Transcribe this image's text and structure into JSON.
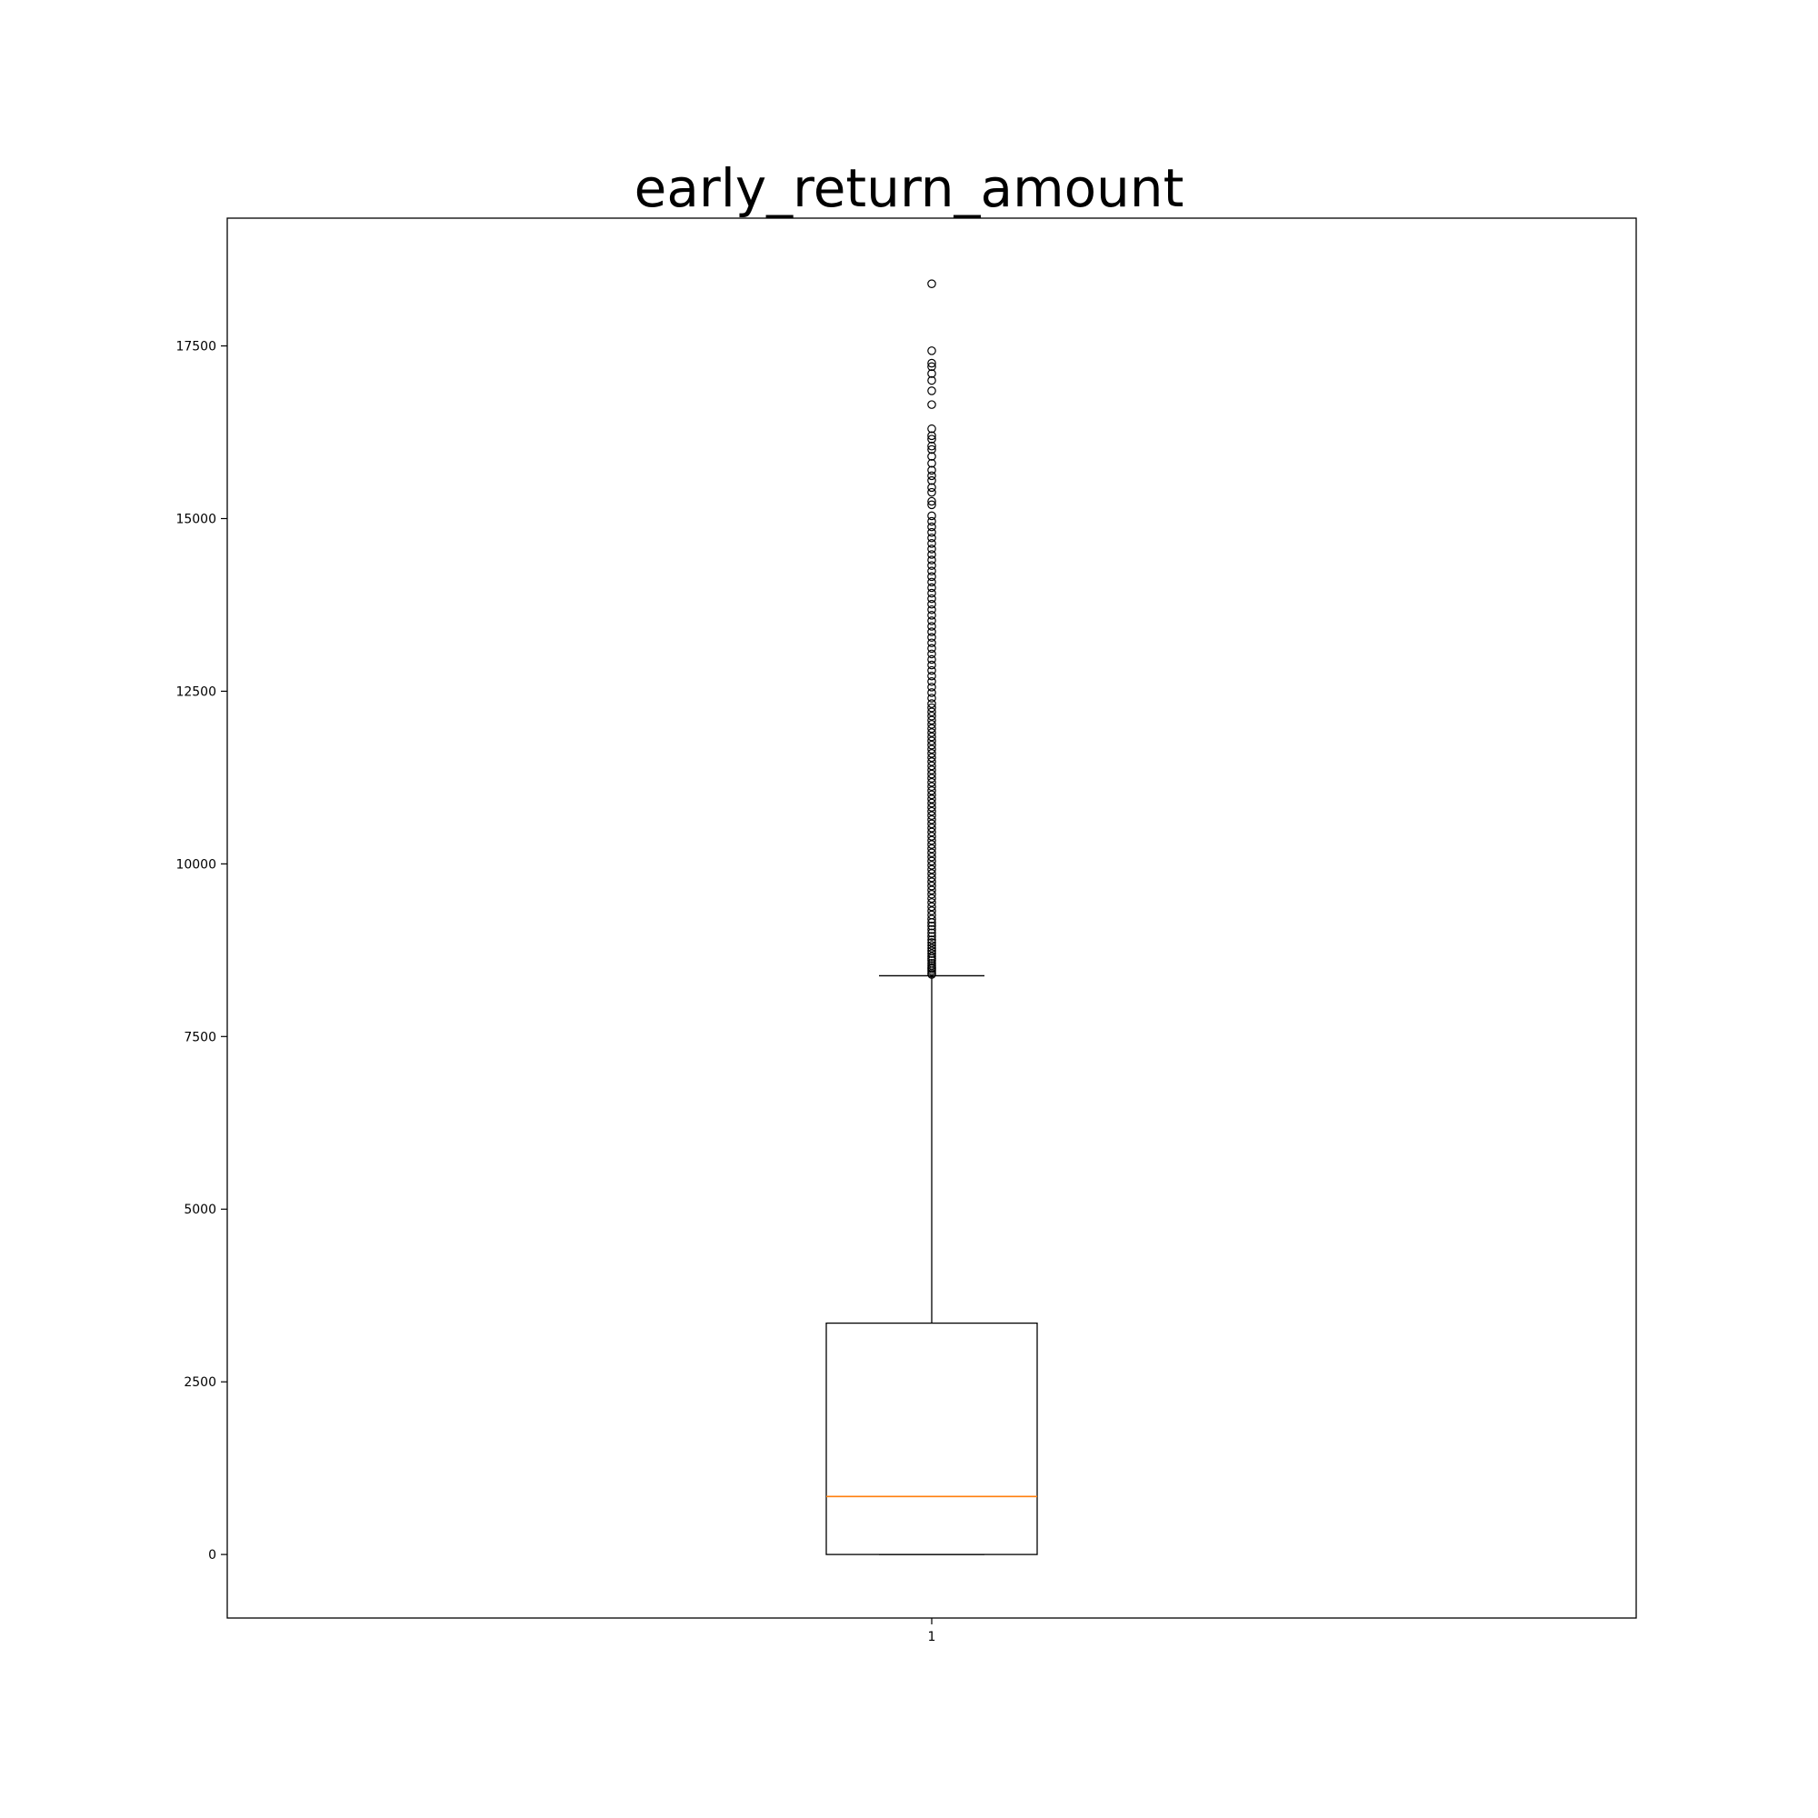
{
  "chart_data": {
    "type": "box",
    "title": "early_return_amount",
    "xlabel": "",
    "ylabel": "",
    "categories": [
      "1"
    ],
    "ylim": [
      -920,
      19350
    ],
    "yticks": [
      0,
      2500,
      5000,
      7500,
      10000,
      12500,
      15000,
      17500
    ],
    "grid": false,
    "box": {
      "category": "1",
      "q1": 0,
      "median": 840,
      "q3": 3350,
      "whisker_low": 0,
      "whisker_high": 8380
    },
    "outliers": [
      8400,
      8420,
      8450,
      8480,
      8500,
      8530,
      8560,
      8600,
      8630,
      8660,
      8700,
      8740,
      8780,
      8820,
      8860,
      8900,
      8950,
      9000,
      9050,
      9100,
      9150,
      9200,
      9260,
      9320,
      9380,
      9440,
      9500,
      9560,
      9620,
      9680,
      9740,
      9800,
      9860,
      9920,
      9980,
      10040,
      10100,
      10160,
      10220,
      10280,
      10340,
      10400,
      10460,
      10520,
      10580,
      10640,
      10700,
      10760,
      10820,
      10880,
      10940,
      11000,
      11060,
      11120,
      11180,
      11240,
      11300,
      11360,
      11420,
      11480,
      11540,
      11600,
      11660,
      11720,
      11780,
      11840,
      11900,
      11960,
      12020,
      12080,
      12140,
      12200,
      12260,
      12320,
      12400,
      12480,
      12560,
      12640,
      12720,
      12800,
      12880,
      12960,
      13040,
      13120,
      13200,
      13280,
      13360,
      13440,
      13520,
      13600,
      13680,
      13760,
      13840,
      13920,
      14000,
      14080,
      14160,
      14240,
      14320,
      14400,
      14480,
      14560,
      14640,
      14720,
      14800,
      14880,
      14960,
      15040,
      15200,
      15250,
      15380,
      15450,
      15550,
      15620,
      15700,
      15800,
      15900,
      16000,
      16050,
      16150,
      16200,
      16300,
      16650,
      16850,
      17000,
      17100,
      17200,
      17250,
      17430,
      18400
    ]
  },
  "colors": {
    "box_edge": "#000000",
    "median_line": "#ff7f0e",
    "outlier_edge": "#000000"
  }
}
